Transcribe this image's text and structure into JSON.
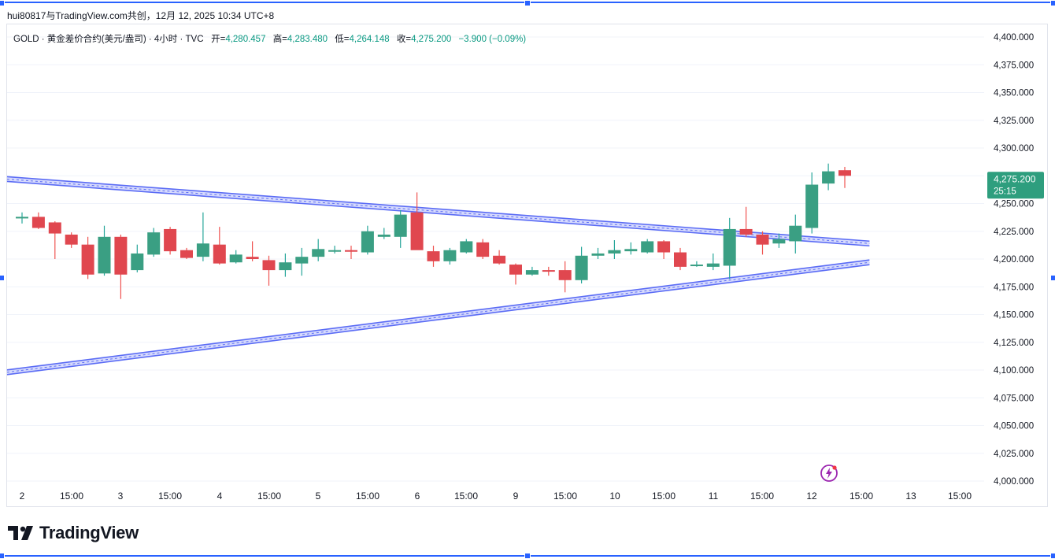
{
  "caption": "hui80817与TradingView.com共创，12月 12, 2025 10:34 UTC+8",
  "legend": {
    "symbol": "GOLD · 黄金差价合约(美元/盎司) · 4小时 · TVC",
    "open_label": "开=",
    "open": "4,280.457",
    "high_label": "高=",
    "high": "4,283.480",
    "low_label": "低=",
    "low": "4,264.148",
    "close_label": "收=",
    "close": "4,275.200",
    "change": "−3.900 (−0.09%)"
  },
  "price_tag": {
    "price": "4,275.200",
    "countdown": "25:15"
  },
  "branding": {
    "logo_text": "TradingView"
  },
  "colors": {
    "up": "#26a69a",
    "down": "#ef5350",
    "up_body": "#3a9f83",
    "down_body": "#e0474f",
    "trendline": "#5b6cf5",
    "price_tag_bg": "#2e9e7e"
  },
  "chart_data": {
    "type": "candlestick",
    "title": "GOLD · 黄金差价合约(美元/盎司) · 4小时 · TVC",
    "ylim": [
      4000,
      4400
    ],
    "y_ticks": [
      "4,400.000",
      "4,375.000",
      "4,350.000",
      "4,325.000",
      "4,300.000",
      "4,275.000",
      "4,250.000",
      "4,225.000",
      "4,200.000",
      "4,175.000",
      "4,150.000",
      "4,125.000",
      "4,100.000",
      "4,075.000",
      "4,050.000",
      "4,025.000",
      "4,000.000"
    ],
    "x_ticks": [
      "2",
      "15:00",
      "3",
      "15:00",
      "4",
      "15:00",
      "5",
      "15:00",
      "6",
      "15:00",
      "9",
      "15:00",
      "10",
      "15:00",
      "11",
      "15:00",
      "12",
      "15:00",
      "13",
      "15:00"
    ],
    "candles": [
      {
        "o": 4238,
        "h": 4242,
        "l": 4232,
        "c": 4238
      },
      {
        "o": 4238,
        "h": 4242,
        "l": 4227,
        "c": 4228
      },
      {
        "o": 4233,
        "h": 4234,
        "l": 4200,
        "c": 4223
      },
      {
        "o": 4222,
        "h": 4224,
        "l": 4210,
        "c": 4213
      },
      {
        "o": 4213,
        "h": 4220,
        "l": 4182,
        "c": 4186
      },
      {
        "o": 4187,
        "h": 4230,
        "l": 4185,
        "c": 4220
      },
      {
        "o": 4220,
        "h": 4222,
        "l": 4164,
        "c": 4186
      },
      {
        "o": 4190,
        "h": 4213,
        "l": 4188,
        "c": 4205
      },
      {
        "o": 4204,
        "h": 4228,
        "l": 4202,
        "c": 4224
      },
      {
        "o": 4227,
        "h": 4229,
        "l": 4204,
        "c": 4207
      },
      {
        "o": 4208,
        "h": 4210,
        "l": 4200,
        "c": 4201
      },
      {
        "o": 4202,
        "h": 4242,
        "l": 4198,
        "c": 4214
      },
      {
        "o": 4213,
        "h": 4229,
        "l": 4195,
        "c": 4196
      },
      {
        "o": 4197,
        "h": 4208,
        "l": 4196,
        "c": 4204
      },
      {
        "o": 4202,
        "h": 4216,
        "l": 4198,
        "c": 4200
      },
      {
        "o": 4199,
        "h": 4203,
        "l": 4176,
        "c": 4190
      },
      {
        "o": 4190,
        "h": 4205,
        "l": 4184,
        "c": 4197
      },
      {
        "o": 4196,
        "h": 4210,
        "l": 4185,
        "c": 4202
      },
      {
        "o": 4202,
        "h": 4218,
        "l": 4198,
        "c": 4209
      },
      {
        "o": 4207,
        "h": 4212,
        "l": 4205,
        "c": 4208
      },
      {
        "o": 4208,
        "h": 4212,
        "l": 4200,
        "c": 4207
      },
      {
        "o": 4206,
        "h": 4230,
        "l": 4204,
        "c": 4225
      },
      {
        "o": 4220,
        "h": 4228,
        "l": 4218,
        "c": 4222
      },
      {
        "o": 4220,
        "h": 4244,
        "l": 4210,
        "c": 4240
      },
      {
        "o": 4242,
        "h": 4260,
        "l": 4210,
        "c": 4208
      },
      {
        "o": 4207,
        "h": 4212,
        "l": 4193,
        "c": 4198
      },
      {
        "o": 4198,
        "h": 4210,
        "l": 4195,
        "c": 4208
      },
      {
        "o": 4206,
        "h": 4218,
        "l": 4205,
        "c": 4216
      },
      {
        "o": 4215,
        "h": 4218,
        "l": 4200,
        "c": 4202
      },
      {
        "o": 4203,
        "h": 4208,
        "l": 4195,
        "c": 4196
      },
      {
        "o": 4195,
        "h": 4196,
        "l": 4177,
        "c": 4186
      },
      {
        "o": 4186,
        "h": 4193,
        "l": 4185,
        "c": 4190
      },
      {
        "o": 4190,
        "h": 4193,
        "l": 4185,
        "c": 4189
      },
      {
        "o": 4190,
        "h": 4198,
        "l": 4170,
        "c": 4181
      },
      {
        "o": 4181,
        "h": 4211,
        "l": 4178,
        "c": 4203
      },
      {
        "o": 4203,
        "h": 4210,
        "l": 4200,
        "c": 4205
      },
      {
        "o": 4205,
        "h": 4217,
        "l": 4200,
        "c": 4208
      },
      {
        "o": 4207,
        "h": 4215,
        "l": 4204,
        "c": 4209
      },
      {
        "o": 4206,
        "h": 4218,
        "l": 4205,
        "c": 4216
      },
      {
        "o": 4216,
        "h": 4217,
        "l": 4200,
        "c": 4206
      },
      {
        "o": 4206,
        "h": 4210,
        "l": 4190,
        "c": 4193
      },
      {
        "o": 4194,
        "h": 4198,
        "l": 4193,
        "c": 4195
      },
      {
        "o": 4193,
        "h": 4205,
        "l": 4190,
        "c": 4196
      },
      {
        "o": 4194,
        "h": 4237,
        "l": 4182,
        "c": 4227
      },
      {
        "o": 4227,
        "h": 4247,
        "l": 4220,
        "c": 4222
      },
      {
        "o": 4222,
        "h": 4225,
        "l": 4204,
        "c": 4213
      },
      {
        "o": 4214,
        "h": 4223,
        "l": 4210,
        "c": 4218
      },
      {
        "o": 4216,
        "h": 4240,
        "l": 4205,
        "c": 4230
      },
      {
        "o": 4228,
        "h": 4278,
        "l": 4223,
        "c": 4267
      },
      {
        "o": 4268,
        "h": 4286,
        "l": 4262,
        "c": 4279
      },
      {
        "o": 4280,
        "h": 4283,
        "l": 4264,
        "c": 4275
      }
    ],
    "trendlines": [
      {
        "name": "upper",
        "from": {
          "x": 0,
          "y": 4272
        },
        "to": {
          "x": 51.5,
          "y": 4214
        }
      },
      {
        "name": "lower",
        "from": {
          "x": 0,
          "y": 4098
        },
        "to": {
          "x": 51.5,
          "y": 4197
        }
      }
    ]
  }
}
